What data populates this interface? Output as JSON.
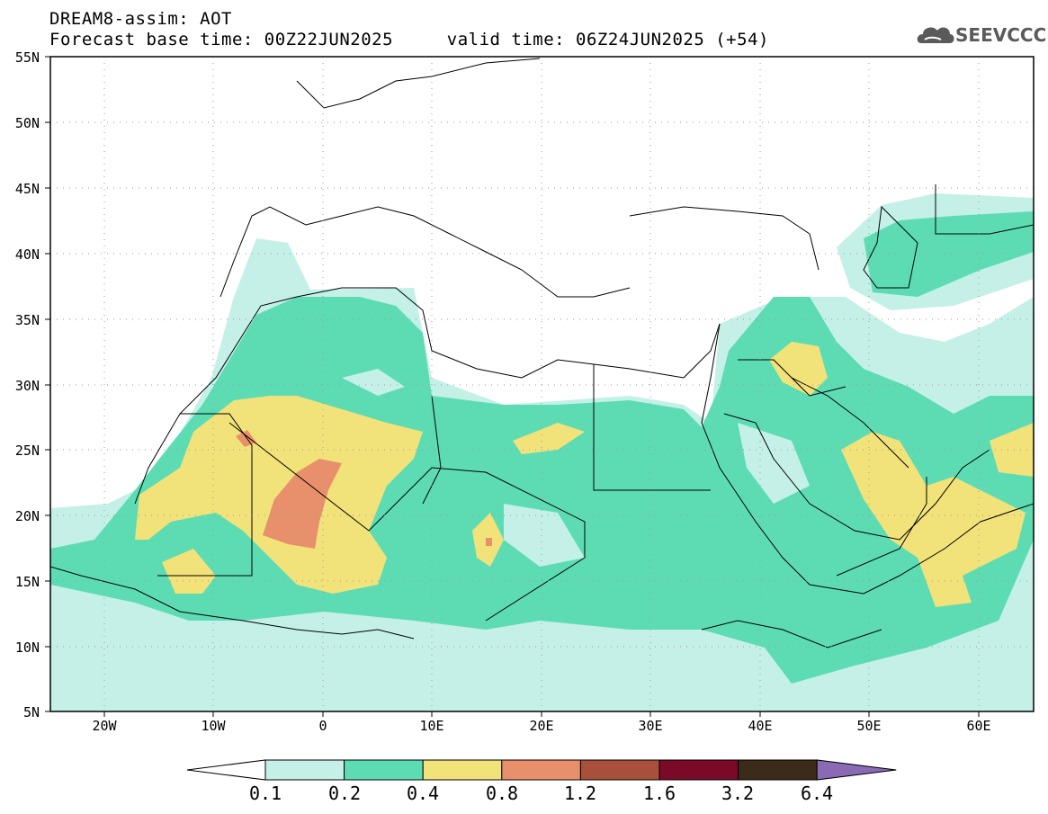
{
  "header": {
    "title": "DREAM8-assim: AOT",
    "base_time": "Forecast base time: 00Z22JUN2025",
    "valid_time": "valid time: 06Z24JUN2025 (+54)"
  },
  "logo": {
    "text": "SEEVCCC",
    "icon": "cloud-icon"
  },
  "axes": {
    "lat_labels": [
      "55N",
      "50N",
      "45N",
      "40N",
      "35N",
      "30N",
      "25N",
      "20N",
      "15N",
      "10N",
      "5N"
    ],
    "lon_labels": [
      "20W",
      "10W",
      "0",
      "10E",
      "20E",
      "30E",
      "40E",
      "50E",
      "60E"
    ]
  },
  "colorbar": {
    "labels": [
      "0.1",
      "0.2",
      "0.4",
      "0.8",
      "1.2",
      "1.6",
      "3.2",
      "6.4"
    ],
    "colors": [
      "#ffffff",
      "#c4f0e8",
      "#5ddcb4",
      "#f2e27a",
      "#e8906c",
      "#a8503c",
      "#7a0a28",
      "#3c2a1a",
      "#8a6ab4"
    ]
  }
}
